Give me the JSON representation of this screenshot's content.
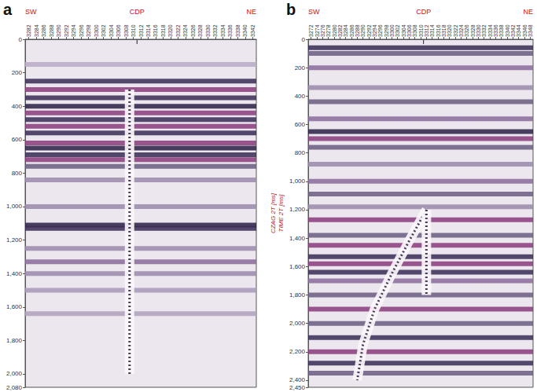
{
  "chart_data": [
    {
      "type": "seismic_section",
      "panel": "a",
      "left_label": "SW",
      "marker_label": "CDP",
      "right_label": "NE",
      "cdp_marker": 3311,
      "xlim": [
        3281,
        3343
      ],
      "xticks": [
        3282,
        3284,
        3286,
        3288,
        3290,
        3292,
        3294,
        3296,
        3298,
        3300,
        3302,
        3304,
        3306,
        3308,
        3310,
        3312,
        3314,
        3316,
        3318,
        3320,
        3322,
        3324,
        3326,
        3328,
        3330,
        3332,
        3334,
        3336,
        3338,
        3340,
        3342
      ],
      "ylim": [
        0,
        2080
      ],
      "yticks": [
        0,
        200,
        400,
        600,
        800,
        1000,
        1200,
        1400,
        1600,
        1800,
        2000
      ],
      "reflectors": [
        {
          "time": 150,
          "color": "#b9a9c4"
        },
        {
          "time": 250,
          "color": "#3a2a55"
        },
        {
          "time": 300,
          "color": "#8a3a7a"
        },
        {
          "time": 350,
          "color": "#3a2a55"
        },
        {
          "time": 400,
          "color": "#2a1f45"
        },
        {
          "time": 440,
          "color": "#8a3a7a"
        },
        {
          "time": 480,
          "color": "#3a2a55"
        },
        {
          "time": 520,
          "color": "#8a3a7a"
        },
        {
          "time": 560,
          "color": "#3a2a55"
        },
        {
          "time": 620,
          "color": "#8a3a7a"
        },
        {
          "time": 650,
          "color": "#2a1f45"
        },
        {
          "time": 690,
          "color": "#3a2a55"
        },
        {
          "time": 720,
          "color": "#8a3a7a"
        },
        {
          "time": 760,
          "color": "#6a5a80"
        },
        {
          "time": 840,
          "color": "#9a8aaa"
        },
        {
          "time": 1000,
          "color": "#9a8aaa"
        },
        {
          "time": 1110,
          "color": "#2a1f45"
        },
        {
          "time": 1130,
          "color": "#3a2a55"
        },
        {
          "time": 1250,
          "color": "#9a8aaa"
        },
        {
          "time": 1330,
          "color": "#8a6a9a"
        },
        {
          "time": 1400,
          "color": "#9a8aaa"
        },
        {
          "time": 1500,
          "color": "#a898b8"
        },
        {
          "time": 1640,
          "color": "#b0a0bc"
        }
      ],
      "anomalies": [
        {
          "path": [
            [
              3309,
              300
            ],
            [
              3309,
              2000
            ]
          ]
        }
      ]
    },
    {
      "type": "seismic_section",
      "panel": "b",
      "left_label": "SW",
      "marker_label": "CDP",
      "right_label": "NE",
      "ylabel": [
        "CZAG 2T [ms]",
        "TIME 2T [ms]"
      ],
      "cdp_marker": 3311,
      "xlim": [
        3271,
        3349
      ],
      "xticks": [
        3272,
        3274,
        3276,
        3278,
        3280,
        3282,
        3284,
        3286,
        3288,
        3290,
        3292,
        3294,
        3296,
        3298,
        3300,
        3302,
        3304,
        3306,
        3308,
        3310,
        3312,
        3314,
        3316,
        3318,
        3320,
        3322,
        3324,
        3326,
        3328,
        3330,
        3332,
        3334,
        3336,
        3338,
        3340,
        3342,
        3344,
        3346,
        3348
      ],
      "ylim": [
        0,
        2450
      ],
      "yticks": [
        0,
        200,
        400,
        600,
        800,
        1000,
        1200,
        1400,
        1600,
        1800,
        2000,
        2200,
        2400
      ],
      "reflectors": [
        {
          "time": 60,
          "color": "#3a2a55"
        },
        {
          "time": 100,
          "color": "#6a5a80"
        },
        {
          "time": 200,
          "color": "#8a6a9a"
        },
        {
          "time": 340,
          "color": "#9a8aaa"
        },
        {
          "time": 440,
          "color": "#6a5a80"
        },
        {
          "time": 560,
          "color": "#8a6a9a"
        },
        {
          "time": 650,
          "color": "#2a1f45"
        },
        {
          "time": 700,
          "color": "#8a3a7a"
        },
        {
          "time": 760,
          "color": "#6a5a80"
        },
        {
          "time": 880,
          "color": "#9a8aaa"
        },
        {
          "time": 1000,
          "color": "#8a6a9a"
        },
        {
          "time": 1090,
          "color": "#6a5a80"
        },
        {
          "time": 1180,
          "color": "#9a8aaa"
        },
        {
          "time": 1270,
          "color": "#8a3a7a"
        },
        {
          "time": 1380,
          "color": "#6a5a80"
        },
        {
          "time": 1450,
          "color": "#8a3a7a"
        },
        {
          "time": 1530,
          "color": "#3a2a55"
        },
        {
          "time": 1580,
          "color": "#8a3a7a"
        },
        {
          "time": 1640,
          "color": "#3a2a55"
        },
        {
          "time": 1700,
          "color": "#8a6a9a"
        },
        {
          "time": 1800,
          "color": "#6a5a80"
        },
        {
          "time": 1900,
          "color": "#8a3a7a"
        },
        {
          "time": 2000,
          "color": "#6a5a80"
        },
        {
          "time": 2100,
          "color": "#3a2a55"
        },
        {
          "time": 2200,
          "color": "#8a3a7a"
        },
        {
          "time": 2280,
          "color": "#3a2a55"
        },
        {
          "time": 2350,
          "color": "#6a5a80"
        }
      ],
      "anomalies": [
        {
          "path": [
            [
              3312,
              1200
            ],
            [
              3306,
              1420
            ],
            [
              3300,
              1650
            ],
            [
              3294,
              1900
            ],
            [
              3290,
              2150
            ],
            [
              3288,
              2400
            ]
          ]
        },
        {
          "path": [
            [
              3312,
              1200
            ],
            [
              3312,
              1800
            ]
          ]
        }
      ]
    }
  ]
}
